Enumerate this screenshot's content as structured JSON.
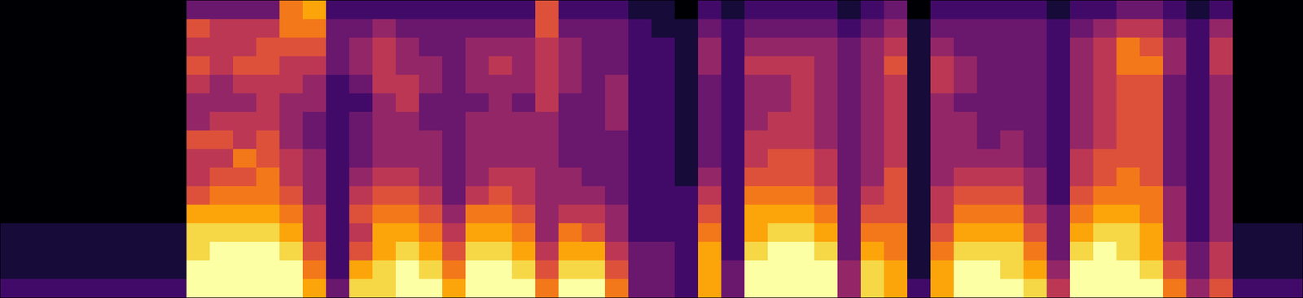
{
  "chart_data": {
    "type": "heatmap",
    "tick_labels": false,
    "grid": false,
    "color": "inferno",
    "color_range": [
      0,
      10
    ],
    "cells": [
      [
        2,
        1,
        1,
        1,
        0,
        0,
        0,
        0,
        0,
        0,
        0,
        0,
        0,
        0,
        0,
        0
      ],
      [
        2,
        1,
        1,
        1,
        0,
        0,
        0,
        0,
        0,
        0,
        0,
        0,
        0,
        0,
        0,
        0
      ],
      [
        2,
        1,
        1,
        1,
        0,
        0,
        0,
        0,
        0,
        0,
        0,
        0,
        0,
        0,
        0,
        0
      ],
      [
        2,
        1,
        1,
        1,
        0,
        0,
        0,
        0,
        0,
        0,
        0,
        0,
        0,
        0,
        0,
        0
      ],
      [
        2,
        1,
        1,
        1,
        0,
        0,
        0,
        0,
        0,
        0,
        0,
        0,
        0,
        0,
        0,
        0
      ],
      [
        2,
        1,
        1,
        1,
        0,
        0,
        0,
        0,
        0,
        0,
        0,
        0,
        0,
        0,
        0,
        0
      ],
      [
        2,
        1,
        1,
        1,
        0,
        0,
        0,
        0,
        0,
        0,
        0,
        0,
        0,
        0,
        0,
        0
      ],
      [
        2,
        1,
        1,
        1,
        0,
        0,
        0,
        0,
        0,
        0,
        0,
        0,
        0,
        0,
        0,
        0
      ],
      [
        10,
        10,
        9,
        9,
        8,
        6,
        5,
        5,
        6,
        4,
        4,
        5,
        6,
        5,
        6,
        3
      ],
      [
        10,
        10,
        10,
        9,
        8,
        7,
        6,
        5,
        6,
        5,
        4,
        4,
        5,
        5,
        5,
        3
      ],
      [
        10,
        10,
        10,
        9,
        8,
        7,
        6,
        7,
        5,
        5,
        4,
        5,
        6,
        5,
        5,
        3
      ],
      [
        10,
        10,
        10,
        9,
        8,
        7,
        7,
        6,
        6,
        5,
        5,
        5,
        6,
        6,
        5,
        3
      ],
      [
        10,
        10,
        9,
        8,
        7,
        6,
        5,
        5,
        4,
        4,
        4,
        5,
        5,
        6,
        7,
        7
      ],
      [
        8,
        7,
        6,
        5,
        5,
        4,
        4,
        4,
        3,
        3,
        4,
        4,
        5,
        6,
        7,
        8
      ],
      [
        3,
        2,
        2,
        2,
        2,
        2,
        2,
        2,
        2,
        2,
        2,
        2,
        3,
        3,
        3,
        2
      ],
      [
        9,
        8,
        6,
        5,
        6,
        5,
        4,
        3,
        3,
        3,
        2,
        3,
        4,
        4,
        3,
        2
      ],
      [
        9,
        9,
        8,
        8,
        7,
        6,
        5,
        4,
        4,
        4,
        4,
        5,
        5,
        5,
        4,
        2
      ],
      [
        10,
        10,
        9,
        8,
        7,
        6,
        5,
        4,
        4,
        4,
        5,
        5,
        4,
        4,
        3,
        2
      ],
      [
        10,
        9,
        8,
        7,
        6,
        5,
        4,
        4,
        4,
        3,
        3,
        4,
        4,
        3,
        3,
        2
      ],
      [
        8,
        7,
        6,
        5,
        4,
        3,
        3,
        3,
        3,
        3,
        3,
        3,
        3,
        3,
        3,
        2
      ],
      [
        10,
        10,
        9,
        8,
        7,
        5,
        4,
        4,
        4,
        4,
        3,
        4,
        4,
        4,
        3,
        2
      ],
      [
        10,
        10,
        9,
        8,
        7,
        6,
        5,
        4,
        4,
        4,
        4,
        4,
        5,
        4,
        3,
        2
      ],
      [
        10,
        9,
        8,
        7,
        6,
        5,
        5,
        4,
        4,
        4,
        3,
        4,
        4,
        4,
        3,
        2
      ],
      [
        7,
        6,
        5,
        4,
        4,
        4,
        4,
        4,
        4,
        4,
        5,
        5,
        5,
        5,
        6,
        6
      ],
      [
        10,
        9,
        8,
        7,
        5,
        4,
        4,
        3,
        3,
        3,
        3,
        4,
        4,
        4,
        3,
        2
      ],
      [
        10,
        9,
        8,
        6,
        5,
        4,
        3,
        3,
        3,
        3,
        3,
        3,
        3,
        3,
        3,
        2
      ],
      [
        7,
        6,
        5,
        4,
        4,
        3,
        3,
        3,
        3,
        4,
        4,
        4,
        3,
        3,
        3,
        2
      ],
      [
        3,
        3,
        3,
        2,
        2,
        2,
        2,
        2,
        2,
        2,
        2,
        2,
        2,
        2,
        2,
        1
      ],
      [
        3,
        3,
        3,
        2,
        2,
        2,
        2,
        2,
        2,
        2,
        2,
        2,
        2,
        2,
        1,
        1
      ],
      [
        2,
        2,
        2,
        2,
        2,
        2,
        1,
        1,
        1,
        1,
        1,
        1,
        1,
        1,
        1,
        0
      ],
      [
        8,
        8,
        8,
        7,
        6,
        5,
        4,
        3,
        3,
        3,
        3,
        3,
        4,
        4,
        3,
        2
      ],
      [
        3,
        3,
        2,
        2,
        2,
        2,
        2,
        2,
        2,
        2,
        2,
        2,
        2,
        2,
        2,
        1
      ],
      [
        10,
        10,
        9,
        8,
        8,
        7,
        6,
        5,
        5,
        4,
        4,
        4,
        5,
        4,
        3,
        2
      ],
      [
        10,
        10,
        10,
        9,
        8,
        7,
        6,
        6,
        5,
        5,
        4,
        4,
        5,
        4,
        3,
        2
      ],
      [
        10,
        10,
        10,
        9,
        8,
        7,
        6,
        6,
        5,
        5,
        5,
        5,
        5,
        4,
        3,
        2
      ],
      [
        10,
        10,
        9,
        8,
        7,
        6,
        5,
        5,
        4,
        4,
        4,
        4,
        4,
        4,
        3,
        2
      ],
      [
        4,
        4,
        3,
        3,
        3,
        3,
        3,
        3,
        3,
        3,
        3,
        3,
        3,
        3,
        2,
        1
      ],
      [
        9,
        9,
        8,
        7,
        6,
        5,
        4,
        4,
        4,
        4,
        4,
        4,
        4,
        4,
        3,
        2
      ],
      [
        8,
        8,
        7,
        7,
        6,
        6,
        6,
        5,
        5,
        5,
        5,
        5,
        6,
        5,
        4,
        3
      ],
      [
        2,
        1,
        1,
        1,
        1,
        1,
        1,
        1,
        1,
        1,
        1,
        1,
        1,
        1,
        1,
        0
      ],
      [
        8,
        8,
        7,
        6,
        5,
        5,
        4,
        4,
        4,
        4,
        4,
        5,
        5,
        4,
        3,
        2
      ],
      [
        10,
        10,
        9,
        8,
        7,
        6,
        5,
        4,
        4,
        4,
        3,
        4,
        4,
        3,
        3,
        2
      ],
      [
        10,
        10,
        9,
        8,
        7,
        6,
        5,
        4,
        3,
        3,
        3,
        3,
        3,
        3,
        3,
        2
      ],
      [
        10,
        9,
        9,
        8,
        7,
        6,
        5,
        4,
        4,
        3,
        3,
        3,
        3,
        3,
        3,
        2
      ],
      [
        9,
        8,
        7,
        6,
        5,
        4,
        4,
        3,
        3,
        3,
        3,
        3,
        3,
        3,
        3,
        2
      ],
      [
        5,
        4,
        3,
        3,
        3,
        2,
        2,
        2,
        2,
        2,
        2,
        2,
        2,
        2,
        2,
        1
      ],
      [
        10,
        10,
        9,
        8,
        7,
        6,
        5,
        5,
        4,
        4,
        4,
        4,
        4,
        4,
        3,
        2
      ],
      [
        10,
        10,
        10,
        9,
        8,
        7,
        6,
        6,
        5,
        5,
        5,
        5,
        5,
        5,
        4,
        2
      ],
      [
        10,
        10,
        9,
        9,
        8,
        7,
        7,
        6,
        6,
        6,
        6,
        6,
        7,
        7,
        5,
        3
      ],
      [
        10,
        9,
        8,
        8,
        7,
        7,
        6,
        6,
        6,
        6,
        6,
        6,
        7,
        6,
        5,
        3
      ],
      [
        7,
        6,
        5,
        4,
        4,
        4,
        3,
        3,
        3,
        3,
        3,
        3,
        4,
        4,
        3,
        2
      ],
      [
        4,
        3,
        3,
        2,
        2,
        2,
        2,
        2,
        2,
        2,
        2,
        2,
        2,
        2,
        2,
        1
      ],
      [
        6,
        5,
        5,
        4,
        4,
        4,
        4,
        4,
        4,
        4,
        4,
        4,
        5,
        5,
        4,
        2
      ],
      [
        2,
        1,
        1,
        1,
        0,
        0,
        0,
        0,
        0,
        0,
        0,
        0,
        0,
        0,
        0,
        0
      ],
      [
        2,
        1,
        1,
        1,
        0,
        0,
        0,
        0,
        0,
        0,
        0,
        0,
        0,
        0,
        0,
        0
      ],
      [
        2,
        1,
        1,
        1,
        0,
        0,
        0,
        0,
        0,
        0,
        0,
        0,
        0,
        0,
        0,
        0
      ]
    ]
  }
}
